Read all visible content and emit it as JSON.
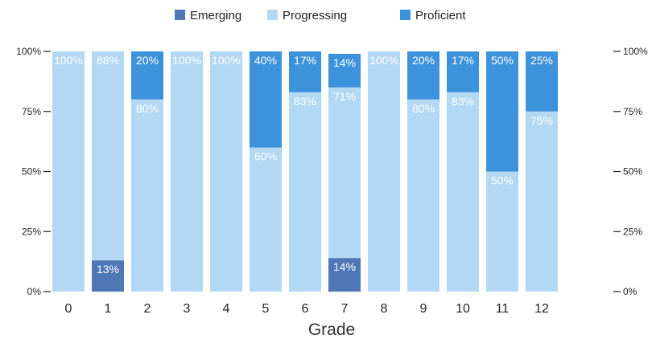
{
  "chart_data": {
    "type": "bar",
    "stacked": true,
    "normalized": true,
    "title": "",
    "xlabel": "Grade",
    "ylabel": "",
    "categories": [
      "0",
      "1",
      "2",
      "3",
      "4",
      "5",
      "6",
      "7",
      "8",
      "9",
      "10",
      "11",
      "12"
    ],
    "series": [
      {
        "name": "Emerging",
        "color": "#4f77b6",
        "values": [
          0,
          13,
          0,
          0,
          0,
          0,
          0,
          14,
          0,
          0,
          0,
          0,
          0
        ]
      },
      {
        "name": "Progressing",
        "color": "#b2d8f3",
        "values": [
          100,
          88,
          80,
          100,
          100,
          60,
          83,
          71,
          100,
          80,
          83,
          50,
          75
        ]
      },
      {
        "name": "Proficient",
        "color": "#3d92dc",
        "values": [
          0,
          0,
          20,
          0,
          0,
          40,
          17,
          14,
          0,
          20,
          17,
          50,
          25
        ]
      }
    ],
    "ylim": [
      0,
      100
    ],
    "y_ticks": [
      "0%",
      "25%",
      "50%",
      "75%",
      "100%"
    ],
    "y_tick_values": [
      0,
      25,
      50,
      75,
      100
    ],
    "y_axis_right": true,
    "grid": false,
    "legend_position": "top"
  }
}
